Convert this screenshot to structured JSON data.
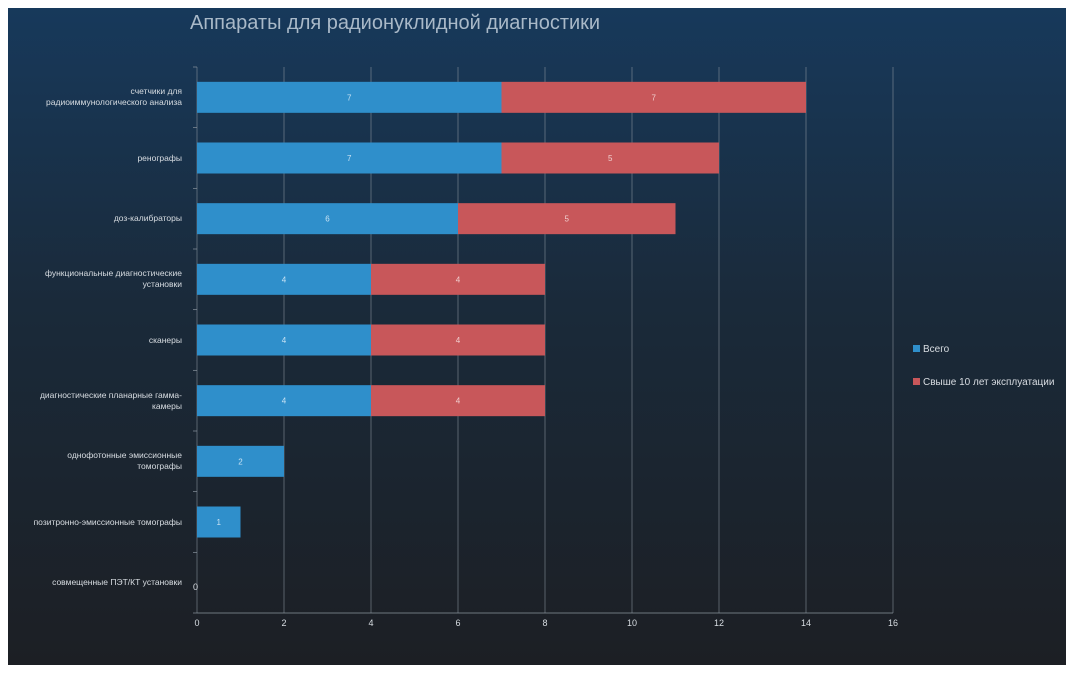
{
  "chart_data": {
    "type": "bar",
    "orientation": "horizontal",
    "stacked": true,
    "title": "Аппараты для радионуклидной диагностики",
    "categories": [
      "счетчики для радиоиммунологического анализа",
      "ренографы",
      "доз-калибраторы",
      "функциональные диагностические установки",
      "сканеры",
      "диагностические планарные гамма-камеры",
      "однофотонные эмиссионные томографы",
      "позитронно-эмиссионные томографы",
      "совмещенные ПЭТ/КТ установки"
    ],
    "category_lines": [
      [
        "счетчики для",
        "радиоиммунологического анализа"
      ],
      [
        "ренографы"
      ],
      [
        "доз-калибраторы"
      ],
      [
        "функциональные диагностические",
        "установки"
      ],
      [
        "сканеры"
      ],
      [
        "диагностические планарные гамма-",
        "камеры"
      ],
      [
        "однофотонные эмиссионные",
        "томографы"
      ],
      [
        "позитронно-эмиссионные томографы"
      ],
      [
        "совмещенные ПЭТ/КТ установки"
      ]
    ],
    "series": [
      {
        "name": "Всего",
        "color": "#2f8fcb",
        "values": [
          7,
          7,
          6,
          4,
          4,
          4,
          2,
          1,
          0
        ]
      },
      {
        "name": "Свыше 10 лет эксплуатации",
        "color": "#c8575a",
        "values": [
          7,
          5,
          5,
          4,
          4,
          4,
          0,
          0,
          0
        ]
      }
    ],
    "zero_label": "0",
    "x_ticks": [
      "0",
      "2",
      "4",
      "6",
      "8",
      "10",
      "12",
      "14",
      "16"
    ],
    "xlim": [
      0,
      16
    ],
    "grid": true,
    "legend_position": "right"
  }
}
